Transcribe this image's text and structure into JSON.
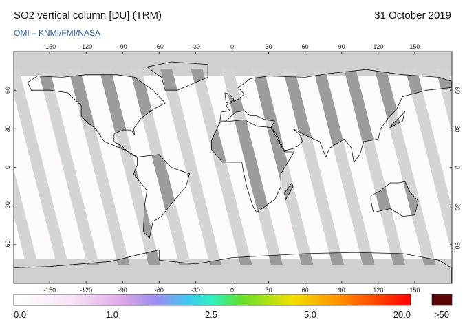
{
  "header": {
    "title": "SO2 vertical column [DU] (TRM)",
    "source": "OMI  –  KNMI/FMI/NASA",
    "date": "31 October 2019"
  },
  "map": {
    "lon_ticks": [
      -150,
      -120,
      -90,
      -60,
      -30,
      0,
      30,
      60,
      90,
      120,
      150
    ],
    "lat_ticks": [
      60,
      30,
      0,
      -30,
      -60
    ]
  },
  "colorbar": {
    "labels": [
      "0.0",
      "1.0",
      "2.5",
      "5.0",
      "20.0"
    ],
    "overflow_label": ">50"
  }
}
